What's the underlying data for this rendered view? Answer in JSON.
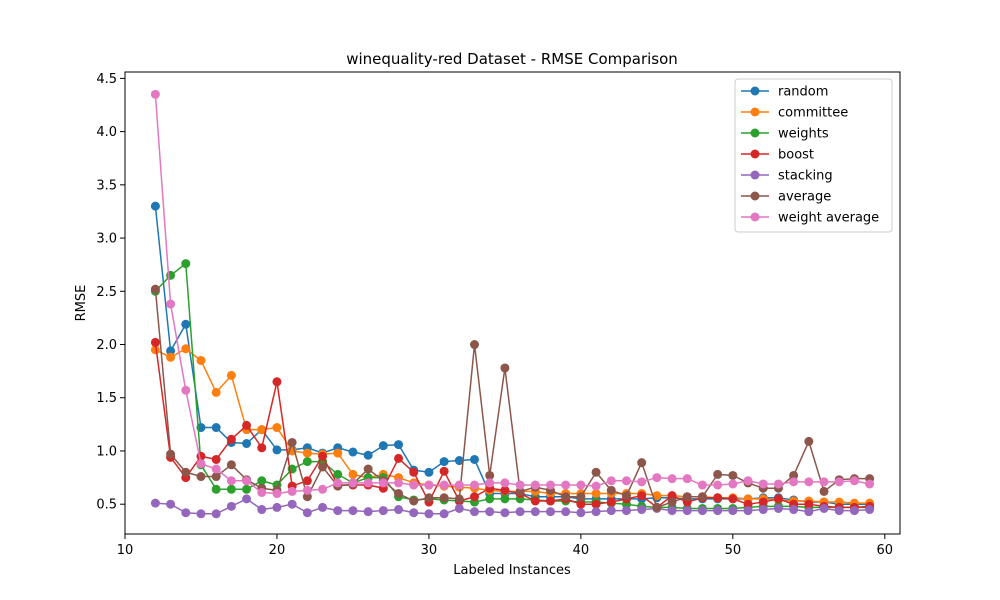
{
  "chart_data": {
    "type": "line",
    "title": "winequality-red Dataset - RMSE Comparison",
    "xlabel": "Labeled Instances",
    "ylabel": "RMSE",
    "xlim": [
      10,
      61
    ],
    "ylim": [
      0.22,
      4.56
    ],
    "xticks": [
      10,
      20,
      30,
      40,
      50,
      60
    ],
    "yticks": [
      0.5,
      1.0,
      1.5,
      2.0,
      2.5,
      3.0,
      3.5,
      4.0,
      4.5
    ],
    "xtick_labels": [
      "10",
      "20",
      "30",
      "40",
      "50",
      "60"
    ],
    "ytick_labels": [
      "0.5",
      "1.0",
      "1.5",
      "2.0",
      "2.5",
      "3.0",
      "3.5",
      "4.0",
      "4.5"
    ],
    "grid": false,
    "legend_position": "top-right",
    "x": [
      12,
      13,
      14,
      15,
      16,
      17,
      18,
      19,
      20,
      21,
      22,
      23,
      24,
      25,
      26,
      27,
      28,
      29,
      30,
      31,
      32,
      33,
      34,
      35,
      36,
      37,
      38,
      39,
      40,
      41,
      42,
      43,
      44,
      45,
      46,
      47,
      48,
      49,
      50,
      51,
      52,
      53,
      54,
      55,
      56,
      57,
      58,
      59
    ],
    "series": [
      {
        "name": "random",
        "color": "#1f77b4",
        "values": [
          3.3,
          1.94,
          2.19,
          1.22,
          1.22,
          1.08,
          1.07,
          1.2,
          1.01,
          1.01,
          1.03,
          0.98,
          1.03,
          0.99,
          0.96,
          1.05,
          1.06,
          0.82,
          0.8,
          0.9,
          0.91,
          0.92,
          0.6,
          0.6,
          0.6,
          0.57,
          0.57,
          0.57,
          0.55,
          0.55,
          0.55,
          0.55,
          0.55,
          0.56,
          0.56,
          0.55,
          0.55,
          0.55,
          0.55,
          0.55,
          0.56,
          0.56,
          0.54,
          0.52,
          0.52,
          0.5,
          0.5,
          0.5
        ]
      },
      {
        "name": "committee",
        "color": "#ff7f0e",
        "values": [
          1.95,
          1.88,
          1.96,
          1.85,
          1.55,
          1.71,
          1.2,
          1.2,
          1.22,
          1.0,
          0.98,
          0.97,
          0.98,
          0.78,
          0.75,
          0.78,
          0.75,
          0.7,
          0.68,
          0.67,
          0.66,
          0.65,
          0.63,
          0.62,
          0.62,
          0.62,
          0.6,
          0.6,
          0.6,
          0.6,
          0.6,
          0.6,
          0.6,
          0.58,
          0.58,
          0.57,
          0.57,
          0.56,
          0.56,
          0.55,
          0.55,
          0.54,
          0.53,
          0.53,
          0.52,
          0.52,
          0.51,
          0.51
        ]
      },
      {
        "name": "weights",
        "color": "#2ca02c",
        "values": [
          2.5,
          2.65,
          2.76,
          0.87,
          0.64,
          0.64,
          0.64,
          0.72,
          0.68,
          0.83,
          0.9,
          0.9,
          0.78,
          0.7,
          0.75,
          0.75,
          0.57,
          0.54,
          0.55,
          0.54,
          0.53,
          0.52,
          0.55,
          0.55,
          0.55,
          0.54,
          0.53,
          0.53,
          0.52,
          0.52,
          0.51,
          0.5,
          0.48,
          0.47,
          0.47,
          0.46,
          0.46,
          0.46,
          0.46,
          0.47,
          0.48,
          0.48,
          0.48,
          0.47,
          0.47,
          0.47,
          0.47,
          0.47
        ]
      },
      {
        "name": "boost",
        "color": "#d62728",
        "values": [
          2.02,
          0.94,
          0.75,
          0.95,
          0.92,
          1.11,
          1.24,
          1.03,
          1.65,
          0.67,
          0.72,
          0.95,
          0.68,
          0.68,
          0.68,
          0.65,
          0.93,
          0.8,
          0.52,
          0.81,
          0.53,
          0.57,
          0.65,
          0.63,
          0.6,
          0.53,
          0.53,
          0.55,
          0.5,
          0.5,
          0.52,
          0.55,
          0.58,
          0.47,
          0.58,
          0.52,
          0.56,
          0.56,
          0.55,
          0.5,
          0.52,
          0.55,
          0.5,
          0.5,
          0.48,
          0.47,
          0.47,
          0.48
        ]
      },
      {
        "name": "stacking",
        "color": "#9467bd",
        "values": [
          0.51,
          0.5,
          0.42,
          0.41,
          0.41,
          0.48,
          0.55,
          0.45,
          0.47,
          0.5,
          0.42,
          0.47,
          0.44,
          0.44,
          0.43,
          0.44,
          0.45,
          0.42,
          0.41,
          0.41,
          0.46,
          0.43,
          0.43,
          0.42,
          0.43,
          0.43,
          0.43,
          0.43,
          0.42,
          0.43,
          0.44,
          0.44,
          0.45,
          0.46,
          0.44,
          0.44,
          0.44,
          0.44,
          0.44,
          0.44,
          0.45,
          0.46,
          0.45,
          0.43,
          0.46,
          0.44,
          0.44,
          0.45
        ]
      },
      {
        "name": "average",
        "color": "#8c564b",
        "values": [
          2.52,
          0.97,
          0.8,
          0.76,
          0.76,
          0.87,
          0.73,
          0.65,
          0.63,
          1.08,
          0.57,
          0.85,
          0.67,
          0.69,
          0.83,
          0.72,
          0.6,
          0.53,
          0.56,
          0.56,
          0.55,
          2.0,
          0.77,
          1.78,
          0.62,
          0.66,
          0.63,
          0.57,
          0.57,
          0.8,
          0.63,
          0.58,
          0.89,
          0.47,
          0.52,
          0.57,
          0.57,
          0.78,
          0.77,
          0.7,
          0.65,
          0.65,
          0.77,
          1.09,
          0.62,
          0.73,
          0.74,
          0.74
        ]
      },
      {
        "name": "weight average",
        "color": "#e377c2",
        "values": [
          4.35,
          2.38,
          1.57,
          0.88,
          0.83,
          0.72,
          0.72,
          0.61,
          0.6,
          0.62,
          0.63,
          0.64,
          0.7,
          0.7,
          0.7,
          0.7,
          0.7,
          0.68,
          0.68,
          0.68,
          0.68,
          0.68,
          0.7,
          0.7,
          0.68,
          0.68,
          0.68,
          0.68,
          0.68,
          0.67,
          0.72,
          0.72,
          0.71,
          0.75,
          0.74,
          0.74,
          0.68,
          0.68,
          0.69,
          0.72,
          0.69,
          0.69,
          0.71,
          0.71,
          0.71,
          0.71,
          0.72,
          0.69
        ]
      }
    ]
  }
}
